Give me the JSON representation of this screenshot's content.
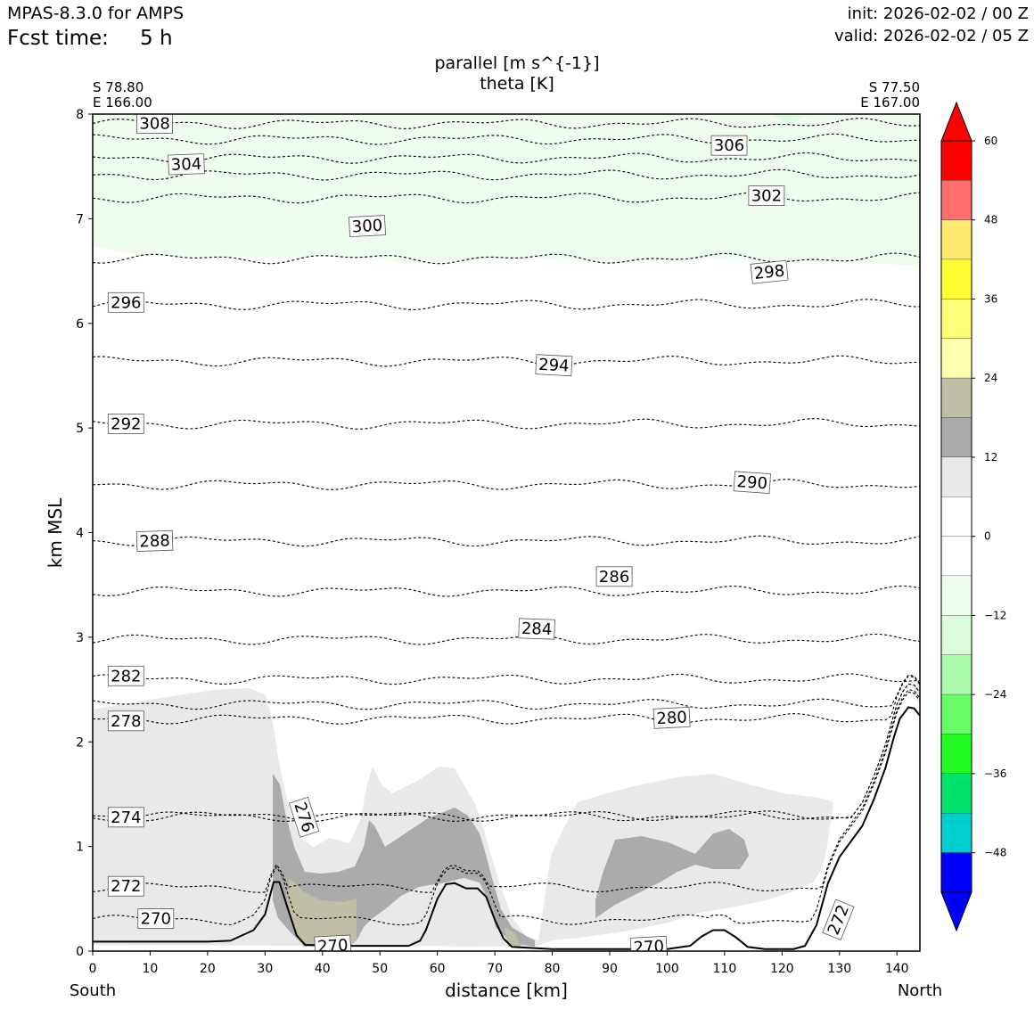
{
  "header": {
    "model": "MPAS-8.3.0 for AMPS",
    "fcst_label": "Fcst time:",
    "fcst_value": "5 h",
    "init": "init: 2026-02-02 / 00 Z",
    "valid": "valid: 2026-02-02 / 05 Z"
  },
  "chart_data": {
    "type": "cross-section contour",
    "title_line1": "parallel [m s^{-1}]",
    "title_line2": "theta [K]",
    "xlabel": "distance [km]",
    "ylabel": "km MSL",
    "xlim": [
      0,
      144
    ],
    "ylim": [
      0,
      8
    ],
    "x_ticks": [
      0,
      10,
      20,
      30,
      40,
      50,
      60,
      70,
      80,
      90,
      100,
      110,
      120,
      130,
      140
    ],
    "y_ticks": [
      0,
      1,
      2,
      3,
      4,
      5,
      6,
      7,
      8
    ],
    "start_point": {
      "lat": "S 78.80",
      "lon": "E 166.00",
      "label": "South"
    },
    "end_point": {
      "lat": "S 77.50",
      "lon": "E 167.00",
      "label": "North"
    },
    "colorbar": {
      "ticks": [
        60,
        48,
        36,
        24,
        12,
        0,
        -12,
        -24,
        -36,
        -48
      ],
      "tick_labels": [
        "60",
        "48",
        "36",
        "24",
        "12",
        "0",
        "−12",
        "−24",
        "−36",
        "−48"
      ],
      "bins": [
        {
          "range": [
            54,
            60
          ],
          "color": "#ff0000"
        },
        {
          "range": [
            48,
            54
          ],
          "color": "#ff6e6e"
        },
        {
          "range": [
            42,
            48
          ],
          "color": "#ffe970"
        },
        {
          "range": [
            36,
            42
          ],
          "color": "#ffff33"
        },
        {
          "range": [
            30,
            36
          ],
          "color": "#ffff77"
        },
        {
          "range": [
            24,
            30
          ],
          "color": "#ffffad"
        },
        {
          "range": [
            18,
            24
          ],
          "color": "#c0bfa6"
        },
        {
          "range": [
            12,
            18
          ],
          "color": "#ababab"
        },
        {
          "range": [
            6,
            12
          ],
          "color": "#e9e9e9"
        },
        {
          "range": [
            0,
            6
          ],
          "color": "#ffffff"
        },
        {
          "range": [
            -6,
            0
          ],
          "color": "#ffffff"
        },
        {
          "range": [
            -12,
            -6
          ],
          "color": "#effdef"
        },
        {
          "range": [
            -18,
            -12
          ],
          "color": "#dbfcdb"
        },
        {
          "range": [
            -24,
            -18
          ],
          "color": "#adfbad"
        },
        {
          "range": [
            -30,
            -24
          ],
          "color": "#66fd66"
        },
        {
          "range": [
            -36,
            -30
          ],
          "color": "#23fd23"
        },
        {
          "range": [
            -42,
            -36
          ],
          "color": "#00e46b"
        },
        {
          "range": [
            -48,
            -42
          ],
          "color": "#00cfcf"
        },
        {
          "range": [
            -54,
            -48
          ],
          "color": "#0000ff"
        }
      ],
      "over_color": "#ff0000",
      "under_color": "#0000ff"
    },
    "terrain": [
      [
        0,
        0.09
      ],
      [
        10,
        0.09
      ],
      [
        20,
        0.09
      ],
      [
        24,
        0.1
      ],
      [
        28,
        0.2
      ],
      [
        30,
        0.35
      ],
      [
        31.5,
        0.66
      ],
      [
        32.5,
        0.66
      ],
      [
        34,
        0.4
      ],
      [
        35.5,
        0.15
      ],
      [
        37,
        0.06
      ],
      [
        45,
        0.05
      ],
      [
        55,
        0.05
      ],
      [
        57,
        0.1
      ],
      [
        58,
        0.2
      ],
      [
        60,
        0.5
      ],
      [
        61.5,
        0.64
      ],
      [
        63,
        0.65
      ],
      [
        65,
        0.6
      ],
      [
        67,
        0.6
      ],
      [
        68.5,
        0.52
      ],
      [
        70,
        0.3
      ],
      [
        71.5,
        0.12
      ],
      [
        73,
        0.04
      ],
      [
        80,
        0.02
      ],
      [
        90,
        0.02
      ],
      [
        100,
        0.02
      ],
      [
        104,
        0.05
      ],
      [
        106,
        0.14
      ],
      [
        108,
        0.2
      ],
      [
        110,
        0.2
      ],
      [
        112,
        0.13
      ],
      [
        114,
        0.04
      ],
      [
        117,
        0.02
      ],
      [
        122,
        0.02
      ],
      [
        124,
        0.05
      ],
      [
        126,
        0.25
      ],
      [
        128,
        0.65
      ],
      [
        130,
        0.9
      ],
      [
        132,
        1.05
      ],
      [
        134,
        1.2
      ],
      [
        136,
        1.45
      ],
      [
        138,
        1.75
      ],
      [
        139.5,
        2.05
      ],
      [
        140.5,
        2.22
      ],
      [
        142,
        2.33
      ],
      [
        143,
        2.32
      ],
      [
        144,
        2.25
      ]
    ],
    "theta_contours": [
      {
        "value": 308,
        "y": 7.91
      },
      {
        "value": 306,
        "y": 7.76
      },
      {
        "value": 304,
        "y": 7.58
      },
      {
        "value": 302,
        "y": 7.42
      },
      {
        "value": 300,
        "y": 7.2
      },
      {
        "value": 298,
        "y": 6.62
      },
      {
        "value": 296,
        "y": 6.18
      },
      {
        "value": 294,
        "y": 5.64
      },
      {
        "value": 292,
        "y": 5.04
      },
      {
        "value": 290,
        "y": 4.46
      },
      {
        "value": 288,
        "y": 3.92
      },
      {
        "value": 286,
        "y": 3.44
      },
      {
        "value": 284,
        "y": 2.98
      },
      {
        "value": 282,
        "y": 2.6
      },
      {
        "value": 280,
        "y": 2.36
      },
      {
        "value": 278,
        "y": 2.22
      },
      {
        "value": 276,
        "y": 1.29
      },
      {
        "value": 274,
        "y": 1.29
      },
      {
        "value": 272,
        "y": 0.61
      },
      {
        "value": 270,
        "y": 0.3
      }
    ],
    "contour_labels": [
      {
        "text": "308",
        "x": 8,
        "y": 7.91,
        "rot": 0
      },
      {
        "text": "306",
        "x": 108,
        "y": 7.7,
        "rot": 0
      },
      {
        "text": "304",
        "x": 13.5,
        "y": 7.52,
        "rot": -2
      },
      {
        "text": "302",
        "x": 114.5,
        "y": 7.22,
        "rot": 0
      },
      {
        "text": "300",
        "x": 45,
        "y": 6.93,
        "rot": -3
      },
      {
        "text": "298",
        "x": 115,
        "y": 6.49,
        "rot": -6
      },
      {
        "text": "296",
        "x": 3,
        "y": 6.2,
        "rot": 0
      },
      {
        "text": "294",
        "x": 77.5,
        "y": 5.6,
        "rot": 3
      },
      {
        "text": "292",
        "x": 3,
        "y": 5.04,
        "rot": 0
      },
      {
        "text": "290",
        "x": 112,
        "y": 4.48,
        "rot": 4
      },
      {
        "text": "288",
        "x": 8,
        "y": 3.92,
        "rot": -2
      },
      {
        "text": "286",
        "x": 88,
        "y": 3.58,
        "rot": 0
      },
      {
        "text": "284",
        "x": 74.5,
        "y": 3.08,
        "rot": 2
      },
      {
        "text": "282",
        "x": 3,
        "y": 2.63,
        "rot": 0
      },
      {
        "text": "280",
        "x": 98,
        "y": 2.23,
        "rot": -3
      },
      {
        "text": "278",
        "x": 3,
        "y": 2.2,
        "rot": 0
      },
      {
        "text": "276",
        "x": 34,
        "y": 1.28,
        "rot": 72
      },
      {
        "text": "274",
        "x": 3,
        "y": 1.28,
        "rot": 0
      },
      {
        "text": "272",
        "x": 3,
        "y": 0.62,
        "rot": 0
      },
      {
        "text": "270",
        "x": 8.2,
        "y": 0.31,
        "rot": 0
      },
      {
        "text": "270",
        "x": 39,
        "y": 0.05,
        "rot": -3
      },
      {
        "text": "270",
        "x": 94,
        "y": 0.04,
        "rot": -3
      },
      {
        "text": "272",
        "x": 127,
        "y": 0.3,
        "rot": -68
      }
    ]
  }
}
